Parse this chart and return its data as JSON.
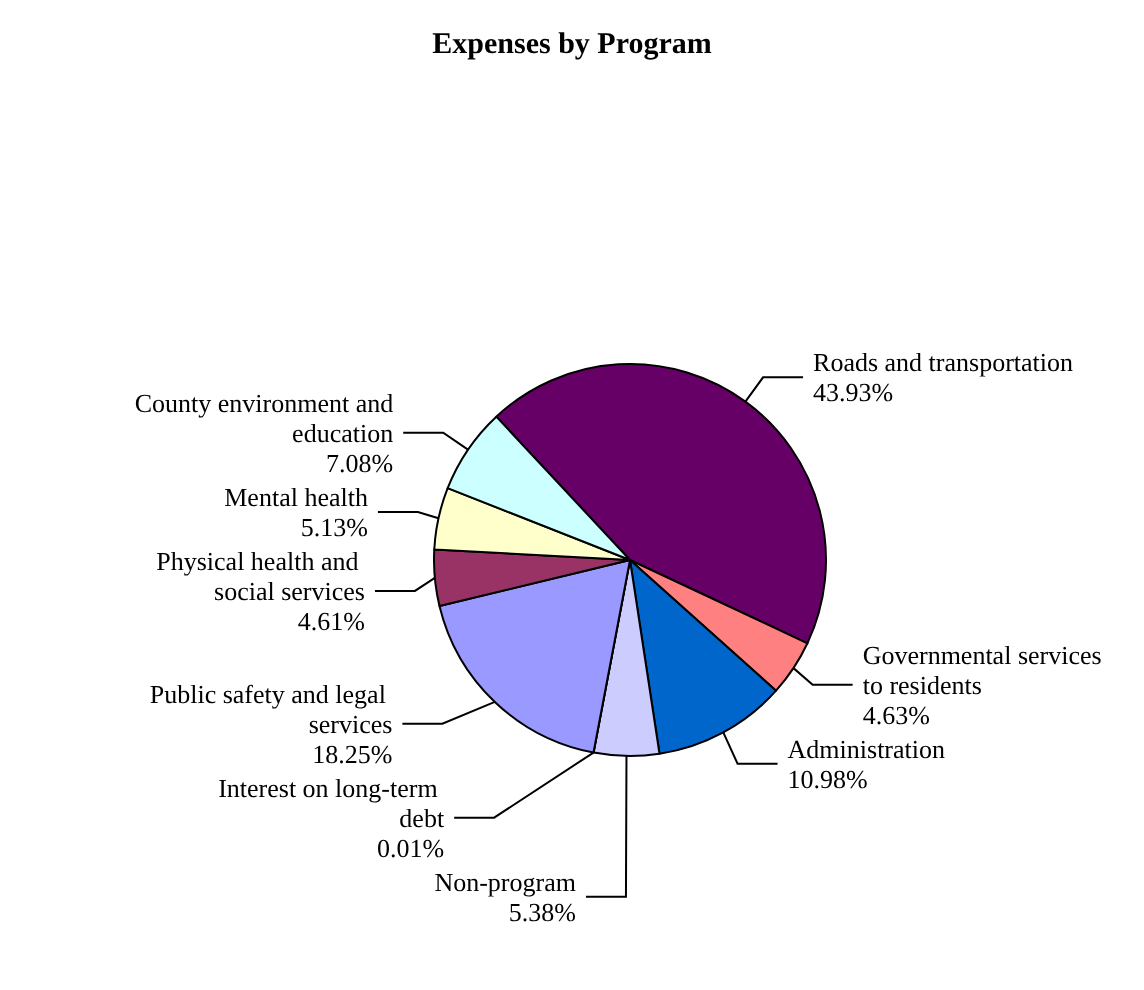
{
  "chart_data": {
    "type": "pie",
    "title": "Expenses by Program",
    "categories": [
      "Roads and transportation",
      "Governmental services to residents",
      "Administration",
      "Non-program",
      "Interest on long-term debt",
      "Public safety and legal services",
      "Physical health and social services",
      "Mental health",
      "County environment and education"
    ],
    "values": [
      43.93,
      4.63,
      10.98,
      5.38,
      0.01,
      18.25,
      4.61,
      5.13,
      7.08
    ],
    "value_labels": [
      "43.93%",
      "4.63%",
      "10.98%",
      "5.38%",
      "0.01%",
      "18.25%",
      "4.61%",
      "5.13%",
      "7.08%"
    ],
    "colors": [
      "#660066",
      "#ff8080",
      "#0066cc",
      "#ccccff",
      "#000080",
      "#9999ff",
      "#993366",
      "#ffffcc",
      "#ccffff"
    ],
    "legend": false
  }
}
